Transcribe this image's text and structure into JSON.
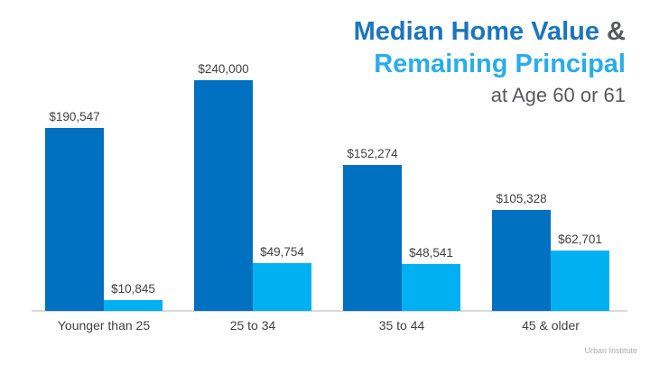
{
  "slide": {
    "title": {
      "line1_main": "Median Home Value",
      "line1_suffix": " &",
      "line2": "Remaining Principal",
      "line3": "at Age 60 or 61"
    },
    "footer": "Urban Institute",
    "colors": {
      "title_dark_blue": "#1C75BC",
      "title_light_blue": "#29ADEA",
      "bar_dark_blue": "#0070C0",
      "bar_light_blue": "#00B0F0",
      "gray_text": "#58595B",
      "label_text": "#404040",
      "axis_line": "#D9D9D9",
      "footer_text": "#ACACAC"
    }
  },
  "chart_data": {
    "type": "bar",
    "title": "Median Home Value & Remaining Principal at Age 60 or 61",
    "categories": [
      "Younger than 25",
      "25 to 34",
      "35 to 44",
      "45 & older"
    ],
    "series": [
      {
        "name": "Median Home Value",
        "color": "#0070C0",
        "values": [
          190547,
          240000,
          152274,
          105328
        ],
        "labels": [
          "$190,547",
          "$240,000",
          "$152,274",
          "$105,328"
        ]
      },
      {
        "name": "Remaining Principal",
        "color": "#00B0F0",
        "values": [
          10845,
          49754,
          48541,
          62701
        ],
        "labels": [
          "$10,845",
          "$49,754",
          "$48,541",
          "$62,701"
        ]
      }
    ],
    "xlabel": "",
    "ylabel": "",
    "ylim": [
      0,
      240000
    ],
    "grid": false,
    "legend": "none",
    "value_label_format": "$#,##0",
    "annotations": [
      "Urban Institute"
    ]
  }
}
